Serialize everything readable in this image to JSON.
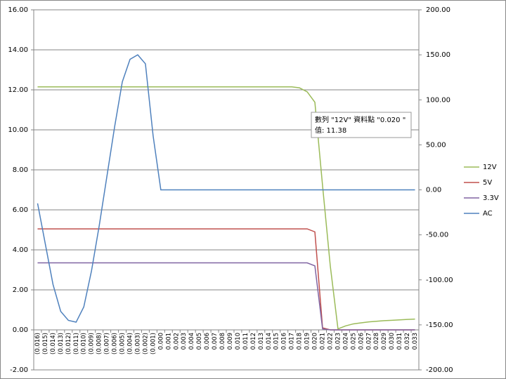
{
  "chart_data": {
    "type": "line",
    "categories": [
      "(0.016)",
      "(0.015)",
      "(0.014)",
      "(0.013)",
      "(0.012)",
      "(0.011)",
      "(0.010)",
      "(0.009)",
      "(0.008)",
      "(0.007)",
      "(0.006)",
      "(0.005)",
      "(0.004)",
      "(0.003)",
      "(0.002)",
      "(0.001)",
      "0.000",
      "0.001",
      "0.002",
      "0.003",
      "0.004",
      "0.005",
      "0.006",
      "0.007",
      "0.008",
      "0.009",
      "0.010",
      "0.011",
      "0.012",
      "0.013",
      "0.014",
      "0.015",
      "0.016",
      "0.017",
      "0.018",
      "0.019",
      "0.020",
      "0.021",
      "0.022",
      "0.023",
      "0.024",
      "0.025",
      "0.026",
      "0.027",
      "0.028",
      "0.029",
      "0.030",
      "0.031",
      "0.032",
      "0.033"
    ],
    "series": [
      {
        "name": "12V",
        "color": "#9bbb59",
        "values": [
          12.15,
          12.15,
          12.15,
          12.15,
          12.15,
          12.15,
          12.15,
          12.15,
          12.15,
          12.15,
          12.15,
          12.15,
          12.15,
          12.15,
          12.15,
          12.15,
          12.15,
          12.15,
          12.15,
          12.15,
          12.15,
          12.15,
          12.15,
          12.15,
          12.15,
          12.15,
          12.15,
          12.15,
          12.15,
          12.15,
          12.15,
          12.15,
          12.15,
          12.15,
          12.1,
          11.9,
          11.38,
          7.2,
          3.2,
          0.05,
          0.2,
          0.3,
          0.35,
          0.4,
          0.43,
          0.46,
          0.48,
          0.5,
          0.52,
          0.54
        ]
      },
      {
        "name": "5V",
        "color": "#c0504d",
        "values": [
          5.05,
          5.05,
          5.05,
          5.05,
          5.05,
          5.05,
          5.05,
          5.05,
          5.05,
          5.05,
          5.05,
          5.05,
          5.05,
          5.05,
          5.05,
          5.05,
          5.05,
          5.05,
          5.05,
          5.05,
          5.05,
          5.05,
          5.05,
          5.05,
          5.05,
          5.05,
          5.05,
          5.05,
          5.05,
          5.05,
          5.05,
          5.05,
          5.05,
          5.05,
          5.05,
          5.05,
          4.9,
          0.1,
          0,
          0,
          0,
          0,
          0,
          0,
          0,
          0,
          0,
          0,
          0,
          0
        ]
      },
      {
        "name": "3.3V",
        "color": "#8064a2",
        "values": [
          3.35,
          3.35,
          3.35,
          3.35,
          3.35,
          3.35,
          3.35,
          3.35,
          3.35,
          3.35,
          3.35,
          3.35,
          3.35,
          3.35,
          3.35,
          3.35,
          3.35,
          3.35,
          3.35,
          3.35,
          3.35,
          3.35,
          3.35,
          3.35,
          3.35,
          3.35,
          3.35,
          3.35,
          3.35,
          3.35,
          3.35,
          3.35,
          3.35,
          3.35,
          3.35,
          3.35,
          3.2,
          0.05,
          0,
          0,
          0,
          0,
          0,
          0,
          0,
          0,
          0,
          0,
          0,
          0
        ]
      },
      {
        "name": "AC",
        "color": "#4f81bd",
        "axis": "y2",
        "values": [
          -15,
          -60,
          -105,
          -135,
          -145,
          -147,
          -130,
          -90,
          -40,
          15,
          70,
          120,
          145,
          150,
          140,
          60,
          0,
          0,
          0,
          0,
          0,
          0,
          0,
          0,
          0,
          0,
          0,
          0,
          0,
          0,
          0,
          0,
          0,
          0,
          0,
          0,
          0,
          0,
          0,
          0,
          0,
          0,
          0,
          0,
          0,
          0,
          0,
          0,
          0,
          0
        ]
      }
    ],
    "ylim": [
      -2,
      16
    ],
    "yticks": [
      {
        "value": -2,
        "label": "-2.00"
      },
      {
        "value": 0,
        "label": "0.00"
      },
      {
        "value": 2,
        "label": "2.00"
      },
      {
        "value": 4,
        "label": "4.00"
      },
      {
        "value": 6,
        "label": "6.00"
      },
      {
        "value": 8,
        "label": "8.00"
      },
      {
        "value": 10,
        "label": "10.00"
      },
      {
        "value": 12,
        "label": "12.00"
      },
      {
        "value": 14,
        "label": "14.00"
      },
      {
        "value": 16,
        "label": "16.00"
      }
    ],
    "y2lim": [
      -200,
      200
    ],
    "y2ticks": [
      {
        "value": -200,
        "label": "-200.00"
      },
      {
        "value": -150,
        "label": "-150.00"
      },
      {
        "value": -100,
        "label": "-100.00"
      },
      {
        "value": -50,
        "label": "-50.00"
      },
      {
        "value": 0,
        "label": "0.00"
      },
      {
        "value": 50,
        "label": "50.00"
      },
      {
        "value": 100,
        "label": "100.00"
      },
      {
        "value": 150,
        "label": "150.00"
      },
      {
        "value": 200,
        "label": "200.00"
      }
    ],
    "grid": true,
    "legend": "right",
    "tooltip": {
      "title": "數列 \"12V\" 資料點 \"0.020 \"",
      "value_text": "值: 11.38"
    }
  }
}
